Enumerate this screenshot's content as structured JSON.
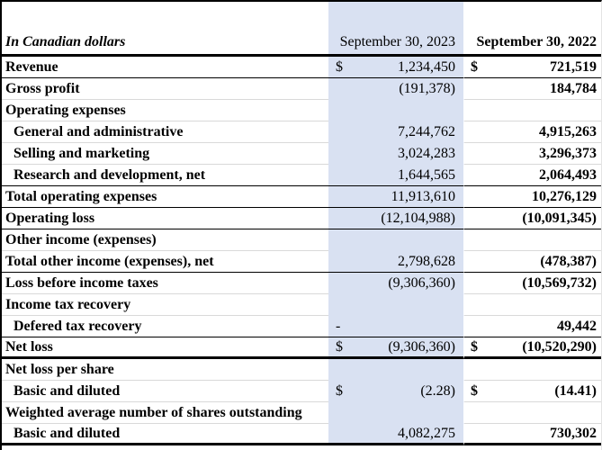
{
  "colors": {
    "highlight": "#d9e1f2",
    "gridline": "#d9d9d9",
    "border": "#000000"
  },
  "header": {
    "label_column": "In Canadian dollars",
    "col_2023": "September 30, 2023",
    "col_2022": "September 30, 2022"
  },
  "rows": [
    {
      "label": "Revenue",
      "indent": false,
      "d1": "$",
      "v1": "1,234,450",
      "d2": "$",
      "v2": "721,519",
      "border": "black"
    },
    {
      "label": "Gross profit",
      "indent": false,
      "d1": "",
      "v1": "(191,378)",
      "d2": "",
      "v2": "184,784",
      "border": "gray"
    },
    {
      "label": "Operating expenses",
      "indent": false,
      "d1": "",
      "v1": "",
      "d2": "",
      "v2": "",
      "border": "gray"
    },
    {
      "label": "General and administrative",
      "indent": true,
      "d1": "",
      "v1": "7,244,762",
      "d2": "",
      "v2": "4,915,263",
      "border": "gray"
    },
    {
      "label": "Selling and marketing",
      "indent": true,
      "d1": "",
      "v1": "3,024,283",
      "d2": "",
      "v2": "3,296,373",
      "border": "gray"
    },
    {
      "label": "Research and development, net",
      "indent": true,
      "d1": "",
      "v1": "1,644,565",
      "d2": "",
      "v2": "2,064,493",
      "border": "black"
    },
    {
      "label": "Total operating expenses",
      "indent": false,
      "d1": "",
      "v1": "11,913,610",
      "d2": "",
      "v2": "10,276,129",
      "border": "black"
    },
    {
      "label": "Operating loss",
      "indent": false,
      "d1": "",
      "v1": "(12,104,988)",
      "d2": "",
      "v2": "(10,091,345)",
      "border": "black"
    },
    {
      "label": "Other income (expenses)",
      "indent": false,
      "d1": "",
      "v1": "",
      "d2": "",
      "v2": "",
      "border": "gray"
    },
    {
      "label": "Total other income (expenses), net",
      "indent": false,
      "d1": "",
      "v1": "2,798,628",
      "d2": "",
      "v2": "(478,387)",
      "border": "black"
    },
    {
      "label": "Loss before income taxes",
      "indent": false,
      "d1": "",
      "v1": "(9,306,360)",
      "d2": "",
      "v2": "(10,569,732)",
      "border": "gray"
    },
    {
      "label": "Income tax recovery",
      "indent": false,
      "d1": "",
      "v1": "",
      "d2": "",
      "v2": "",
      "border": "gray"
    },
    {
      "label": "Defered tax recovery",
      "indent": true,
      "d1": "-",
      "v1": "",
      "d2": "",
      "v2": "49,442",
      "border": "black"
    },
    {
      "label": "Net loss",
      "indent": false,
      "d1": "$",
      "v1": "(9,306,360)",
      "d2": "$",
      "v2": "(10,520,290)",
      "border": "thick"
    },
    {
      "label": "Net loss per share",
      "indent": false,
      "d1": "",
      "v1": "",
      "d2": "",
      "v2": "",
      "border": "gray"
    },
    {
      "label": "Basic and diluted",
      "indent": true,
      "d1": "$",
      "v1": "(2.28)",
      "d2": "$",
      "v2": "(14.41)",
      "border": "gray"
    },
    {
      "label": "Weighted average number of shares outstanding",
      "indent": false,
      "d1": "",
      "v1": "",
      "d2": "",
      "v2": "",
      "border": "gray"
    },
    {
      "label": "Basic and diluted",
      "indent": true,
      "d1": "",
      "v1": "4,082,275",
      "d2": "",
      "v2": "730,302",
      "border": "thick"
    }
  ]
}
